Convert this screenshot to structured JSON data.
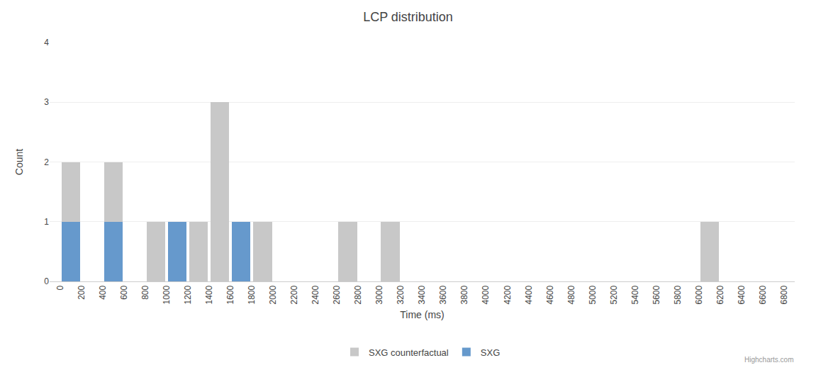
{
  "chart_data": {
    "type": "histogram",
    "title": "LCP distribution",
    "xlabel": "Time (ms)",
    "ylabel": "Count",
    "bins": [
      0,
      200,
      400,
      600,
      800,
      1000,
      1200,
      1400,
      1600,
      1800,
      2000,
      2200,
      2400,
      2600,
      2800,
      3000,
      3200,
      3400,
      3600,
      3800,
      4000,
      4200,
      4400,
      4600,
      4800,
      5000,
      5200,
      5400,
      5600,
      5800,
      6000,
      6200,
      6400,
      6600,
      6800
    ],
    "series": [
      {
        "name": "SXG counterfactual",
        "color": "#c8c8c8",
        "values": [
          2,
          0,
          2,
          0,
          1,
          1,
          1,
          3,
          0,
          1,
          0,
          0,
          0,
          1,
          0,
          1,
          0,
          0,
          0,
          0,
          0,
          0,
          0,
          0,
          0,
          0,
          0,
          0,
          0,
          0,
          1,
          0,
          0,
          0
        ]
      },
      {
        "name": "SXG",
        "color": "#6699cc",
        "values": [
          1,
          0,
          1,
          0,
          0,
          1,
          0,
          0,
          1,
          0,
          0,
          0,
          0,
          0,
          0,
          0,
          0,
          0,
          0,
          0,
          0,
          0,
          0,
          0,
          0,
          0,
          0,
          0,
          0,
          0,
          0,
          0,
          0,
          0
        ]
      }
    ],
    "xlim": [
      -100,
      6900
    ],
    "xticks": [
      0,
      200,
      400,
      600,
      800,
      1000,
      1200,
      1400,
      1600,
      1800,
      2000,
      2200,
      2400,
      2600,
      2800,
      3000,
      3200,
      3400,
      3600,
      3800,
      4000,
      4200,
      4400,
      4600,
      4800,
      5000,
      5200,
      5400,
      5600,
      5800,
      6000,
      6200,
      6400,
      6600,
      6800
    ],
    "ylim": [
      0,
      4
    ],
    "yticks": [
      0,
      1,
      2,
      3,
      4
    ],
    "grid": "y",
    "legend": "bottom",
    "annotations": [
      "Highcharts.com"
    ]
  }
}
